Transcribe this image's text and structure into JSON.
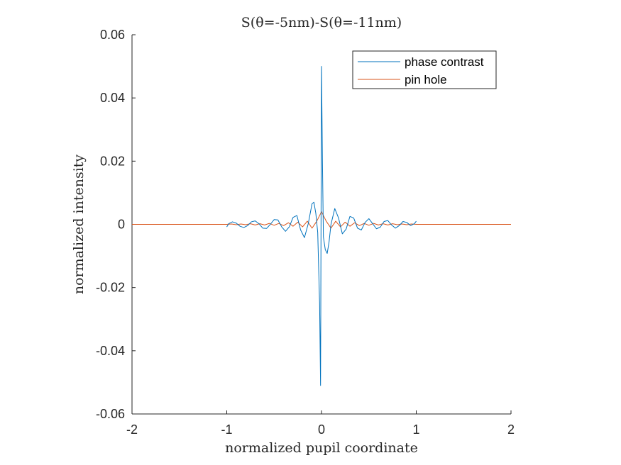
{
  "chart_data": {
    "type": "line",
    "title": "S(θ=-5nm)-S(θ=-11nm)",
    "xlabel": "normalized pupil coordinate",
    "ylabel": "normalized intensity",
    "xlim": [
      -2,
      2
    ],
    "ylim": [
      -0.06,
      0.06
    ],
    "xticks": [
      -2,
      -1,
      0,
      1,
      2
    ],
    "xtick_labels": [
      "-2",
      "-1",
      "0",
      "1",
      "2"
    ],
    "yticks": [
      -0.06,
      -0.04,
      -0.02,
      0,
      0.02,
      0.04,
      0.06
    ],
    "ytick_labels": [
      "-0.06",
      "-0.04",
      "-0.02",
      "0",
      "0.02",
      "0.04",
      "0.06"
    ],
    "grid": false,
    "legend_position": "top-right",
    "series": [
      {
        "name": "phase contrast",
        "color": "#0072BD",
        "x": [
          -1.0,
          -0.98,
          -0.94,
          -0.9,
          -0.86,
          -0.82,
          -0.78,
          -0.74,
          -0.7,
          -0.66,
          -0.62,
          -0.58,
          -0.54,
          -0.5,
          -0.46,
          -0.42,
          -0.38,
          -0.34,
          -0.3,
          -0.26,
          -0.22,
          -0.18,
          -0.14,
          -0.1,
          -0.08,
          -0.06,
          -0.04,
          -0.02,
          -0.01,
          0.0,
          0.01,
          0.02,
          0.04,
          0.06,
          0.08,
          0.1,
          0.14,
          0.18,
          0.22,
          0.26,
          0.3,
          0.34,
          0.38,
          0.42,
          0.46,
          0.5,
          0.54,
          0.58,
          0.62,
          0.66,
          0.7,
          0.74,
          0.78,
          0.82,
          0.86,
          0.9,
          0.94,
          0.98,
          1.0
        ],
        "y": [
          -0.0008,
          0.0002,
          0.0008,
          0.0004,
          -0.0006,
          -0.001,
          -0.0004,
          0.0008,
          0.0011,
          0.0002,
          -0.0012,
          -0.0013,
          0.0,
          0.0015,
          0.0014,
          -0.0008,
          -0.0022,
          -0.0008,
          0.0022,
          0.0028,
          -0.0018,
          -0.0042,
          0.0002,
          0.0065,
          0.007,
          0.0035,
          -0.0025,
          -0.025,
          -0.051,
          0.05,
          0.02,
          -0.004,
          -0.008,
          -0.0092,
          -0.0055,
          0.0,
          0.005,
          0.002,
          -0.003,
          -0.0015,
          0.0025,
          0.002,
          -0.0012,
          -0.0018,
          0.0006,
          0.0018,
          0.0002,
          -0.0014,
          -0.0009,
          0.0009,
          0.0012,
          -0.0002,
          -0.0012,
          -0.0004,
          0.0009,
          0.0006,
          -0.0004,
          0.0002,
          0.001
        ]
      },
      {
        "name": "pin hole",
        "color": "#D95319",
        "x": [
          -2.0,
          -1.0,
          -0.95,
          -0.9,
          -0.85,
          -0.8,
          -0.75,
          -0.7,
          -0.65,
          -0.6,
          -0.55,
          -0.5,
          -0.45,
          -0.4,
          -0.35,
          -0.3,
          -0.25,
          -0.2,
          -0.15,
          -0.1,
          -0.05,
          0.0,
          0.05,
          0.1,
          0.15,
          0.2,
          0.25,
          0.3,
          0.35,
          0.4,
          0.45,
          0.5,
          0.55,
          0.6,
          0.65,
          0.7,
          0.75,
          0.8,
          0.85,
          0.9,
          0.95,
          1.0,
          2.0
        ],
        "y": [
          0.0,
          0.0,
          0.0001,
          -0.0001,
          0.0001,
          -0.0001,
          0.0002,
          -0.0002,
          0.0002,
          -0.0002,
          0.0003,
          -0.0003,
          0.0003,
          -0.0004,
          0.0005,
          -0.0006,
          0.0007,
          -0.0008,
          0.001,
          -0.0012,
          0.001,
          0.004,
          0.001,
          -0.0012,
          0.001,
          -0.0008,
          0.0007,
          -0.0006,
          0.0005,
          -0.0004,
          0.0003,
          -0.0003,
          0.0003,
          -0.0002,
          0.0002,
          -0.0002,
          0.0002,
          -0.0001,
          0.0001,
          -0.0001,
          0.0001,
          0.0,
          0.0
        ]
      }
    ]
  }
}
